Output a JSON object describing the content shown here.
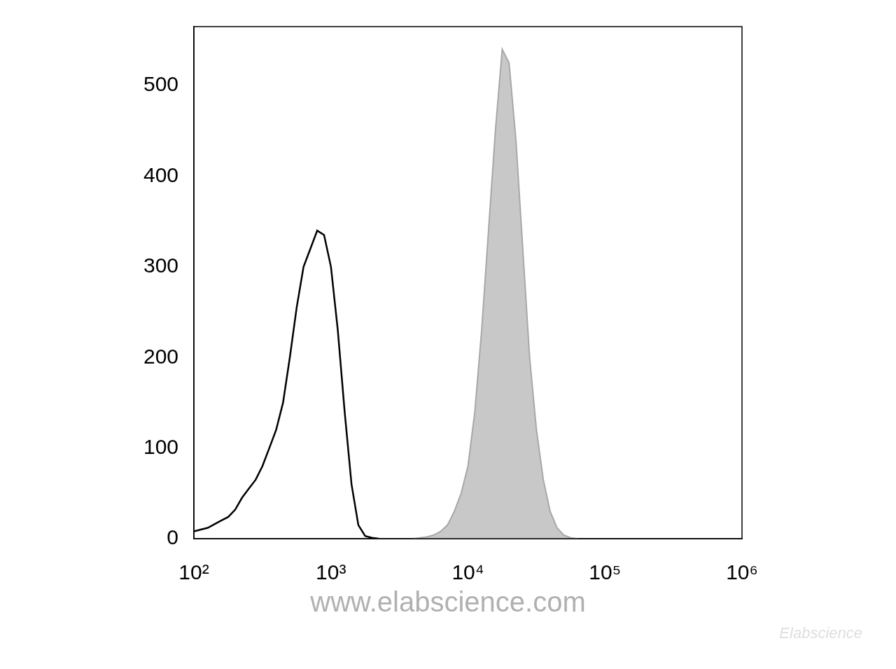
{
  "chart_data": {
    "type": "line",
    "log": "x",
    "grid": false,
    "xlim": [
      100,
      1000000
    ],
    "xticks": [
      {
        "value": 100,
        "label": "10²"
      },
      {
        "value": 1000,
        "label": "10³"
      },
      {
        "value": 10000,
        "label": "10⁴"
      },
      {
        "value": 100000,
        "label": "10⁵"
      },
      {
        "value": 1000000,
        "label": "10⁶"
      }
    ],
    "ylim": [
      0,
      565
    ],
    "yticks": [
      0,
      100,
      200,
      300,
      400,
      500
    ],
    "annotations": [
      "www.elabscience.com",
      "Elabscience"
    ],
    "series": [
      {
        "type": "line",
        "color": "#000000",
        "x": [
          100,
          112,
          126,
          141,
          158,
          178,
          200,
          224,
          251,
          282,
          316,
          355,
          398,
          447,
          501,
          562,
          631,
          708,
          794,
          891,
          1000,
          1122,
          1259,
          1413,
          1585,
          1778,
          1995,
          2239
        ],
        "values": [
          8,
          10,
          12,
          16,
          20,
          24,
          32,
          45,
          55,
          65,
          80,
          100,
          120,
          150,
          200,
          255,
          300,
          320,
          340,
          335,
          300,
          230,
          140,
          60,
          15,
          3,
          1,
          0
        ]
      },
      {
        "type": "area",
        "color": "#c8c8c8",
        "x": [
          3981,
          4467,
          5012,
          5623,
          6310,
          7079,
          7943,
          8913,
          10000,
          11220,
          12589,
          14125,
          15849,
          17783,
          19953,
          22387,
          25119,
          28184,
          31623,
          35481,
          39811,
          44668,
          50119,
          56234,
          63096
        ],
        "values": [
          0,
          1,
          2,
          4,
          8,
          15,
          30,
          50,
          80,
          140,
          230,
          340,
          450,
          540,
          525,
          440,
          320,
          200,
          120,
          65,
          30,
          12,
          4,
          1,
          0
        ]
      }
    ]
  }
}
